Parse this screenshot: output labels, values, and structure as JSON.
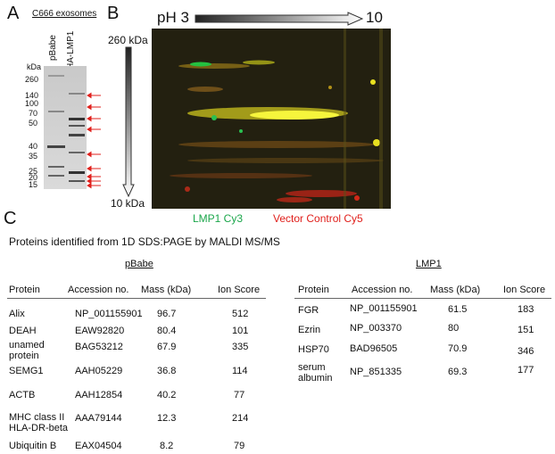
{
  "panels": {
    "a": "A",
    "b": "B",
    "c": "C"
  },
  "panel_a": {
    "title": "C666 exosomes",
    "unit": "kDa",
    "lanes": [
      "pBabe",
      "HA-LMP1"
    ],
    "markers": [
      "260",
      "140",
      "100",
      "70",
      "50",
      "40",
      "35",
      "25",
      "20",
      "15"
    ]
  },
  "panel_b": {
    "ph_start": "pH 3",
    "ph_end": "10",
    "mw_top": "260 kDa",
    "mw_bottom": "10 kDa",
    "legend_lmp1": "LMP1 Cy3",
    "legend_vector": "Vector Control Cy5",
    "colors": {
      "green": "#1aa64a",
      "red": "#e0201c"
    }
  },
  "panel_c": {
    "title": "Proteins identified from 1D SDS:PAGE by MALDI MS/MS",
    "pbabe": {
      "label": "pBabe",
      "headers": [
        "Protein",
        "Accession no.",
        "Mass (kDa)",
        "Ion Score"
      ],
      "rows": [
        {
          "protein": "Alix",
          "accession": "NP_001155901",
          "mass": "96.7",
          "score": "512"
        },
        {
          "protein": "DEAH",
          "accession": "EAW92820",
          "mass": "80.4",
          "score": "101"
        },
        {
          "protein": "unamed",
          "protein2": "protein",
          "accession": "BAG53212",
          "mass": "67.9",
          "score": "335"
        },
        {
          "protein": "SEMG1",
          "accession": "AAH05229",
          "mass": "36.8",
          "score": "114"
        },
        {
          "protein": "ACTB",
          "accession": "AAH12854",
          "mass": "40.2",
          "score": "77"
        },
        {
          "protein": "MHC class II",
          "protein2": "HLA-DR-beta",
          "accession": "AAA79144",
          "mass": "12.3",
          "score": "214"
        },
        {
          "protein": "Ubiquitin B",
          "accession": "EAX04504",
          "mass": "8.2",
          "score": "79"
        }
      ]
    },
    "lmp1": {
      "label": "LMP1",
      "headers": [
        "Protein",
        "Accession no.",
        "Mass (kDa)",
        "Ion Score"
      ],
      "rows": [
        {
          "protein": "FGR",
          "accession": "NP_001155901",
          "mass": "61.5",
          "score": "183"
        },
        {
          "protein": "Ezrin",
          "accession": "NP_003370",
          "mass": "80",
          "score": "151"
        },
        {
          "protein": "HSP70",
          "accession": "BAD96505",
          "mass": "70.9",
          "score": "346"
        },
        {
          "protein": "serum",
          "protein2": "albumin",
          "accession": "NP_851335",
          "mass": "69.3",
          "score": "177"
        }
      ]
    }
  }
}
